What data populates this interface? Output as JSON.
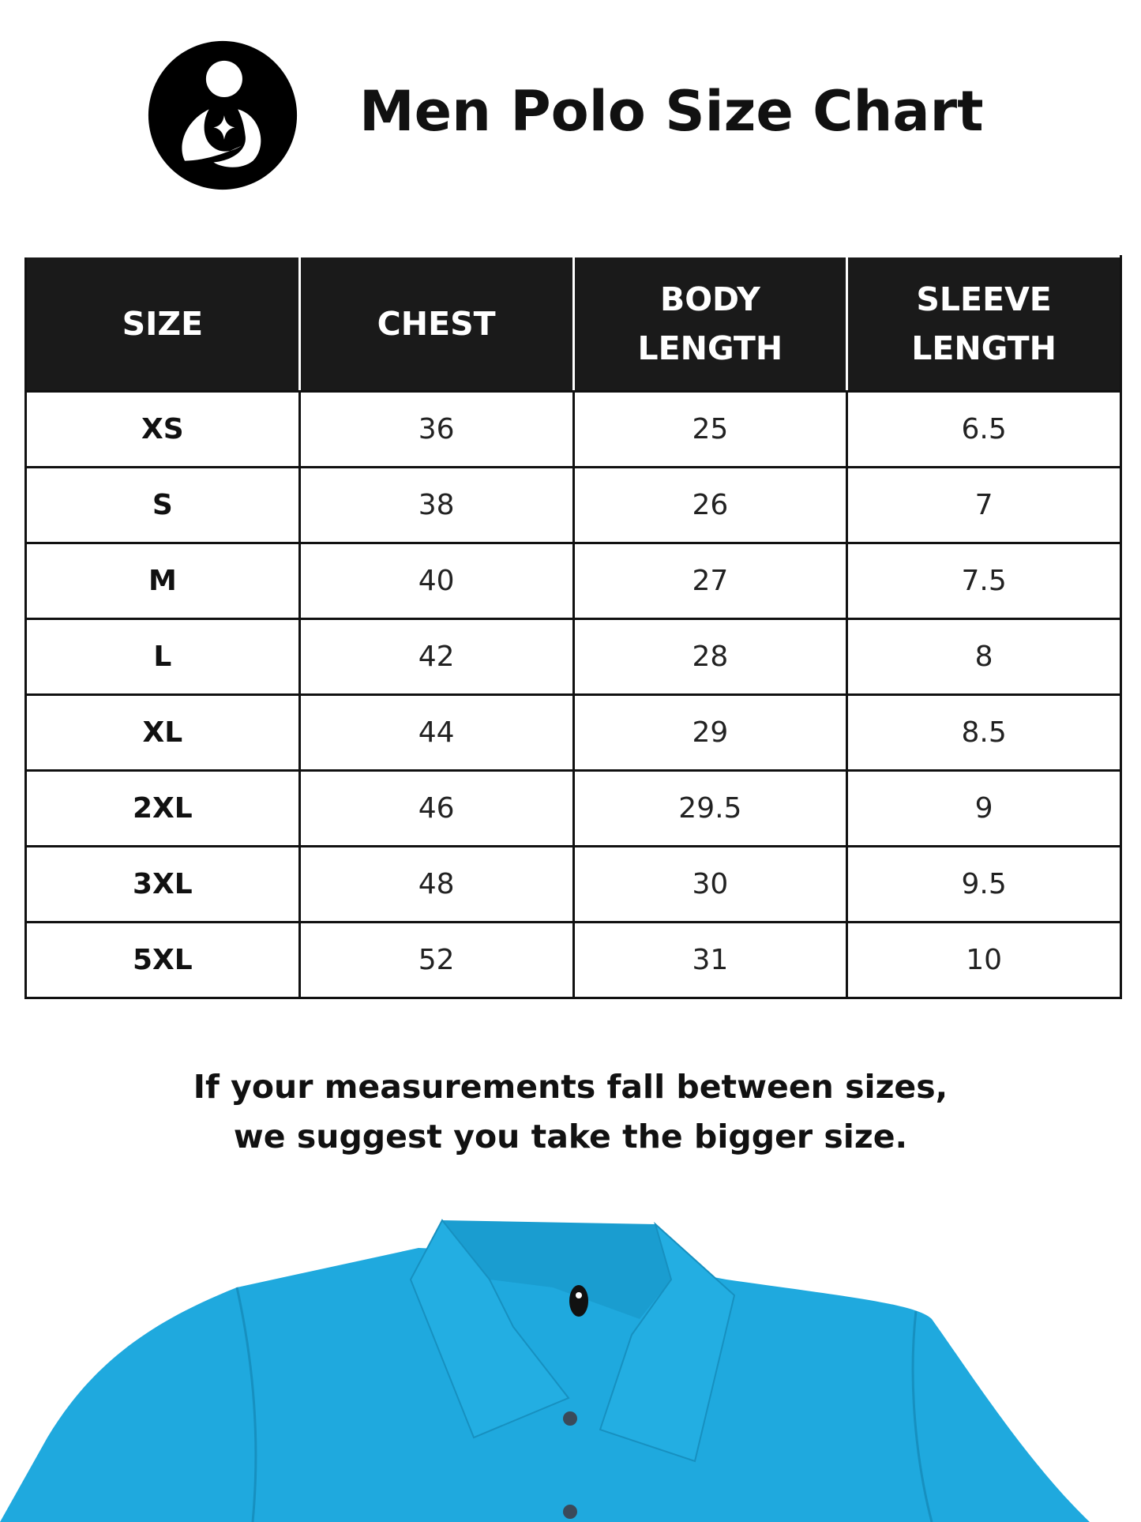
{
  "header": {
    "logo": "brand-logo-circle",
    "title": "Men Polo Size Chart"
  },
  "table": {
    "columns": [
      {
        "line1": "SIZE",
        "line2": ""
      },
      {
        "line1": "CHEST",
        "line2": ""
      },
      {
        "line1": "BODY",
        "line2": "LENGTH"
      },
      {
        "line1": "SLEEVE",
        "line2": "LENGTH"
      }
    ],
    "rows": [
      [
        "XS",
        "36",
        "25",
        "6.5"
      ],
      [
        "S",
        "38",
        "26",
        "7"
      ],
      [
        "M",
        "40",
        "27",
        "7.5"
      ],
      [
        "L",
        "42",
        "28",
        "8"
      ],
      [
        "XL",
        "44",
        "29",
        "8.5"
      ],
      [
        "2XL",
        "46",
        "29.5",
        "9"
      ],
      [
        "3XL",
        "48",
        "30",
        "9.5"
      ],
      [
        "5XL",
        "52",
        "31",
        "10"
      ]
    ]
  },
  "note": {
    "line1": "If your measurements fall between sizes,",
    "line2": "we suggest you take the bigger size."
  },
  "image": {
    "subject": "polo-shirt",
    "color": "#1fa9de"
  }
}
